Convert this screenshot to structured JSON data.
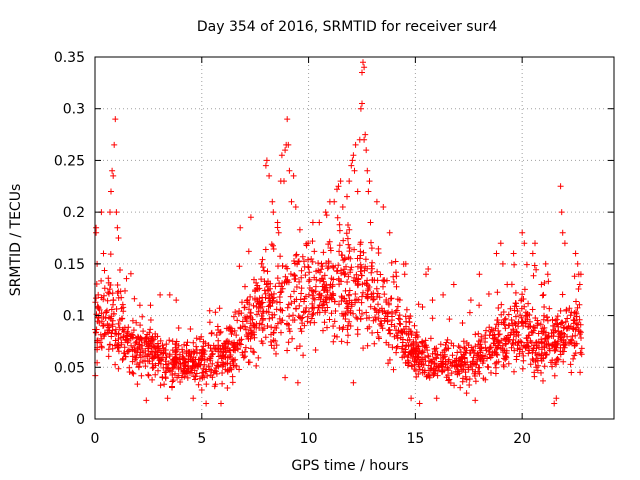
{
  "chart_data": {
    "type": "scatter",
    "title": "Day 354 of 2016, SRMTID for receiver sur4",
    "xlabel": "GPS time / hours",
    "ylabel": "SRMTID / TECUs",
    "xlim": [
      0,
      24.3
    ],
    "ylim": [
      0,
      0.35
    ],
    "x_ticks": [
      0,
      5,
      10,
      15,
      20
    ],
    "x_tick_labels": [
      "0",
      "5",
      "10",
      "15",
      "20"
    ],
    "y_ticks": [
      0,
      0.05,
      0.1,
      0.15,
      0.2,
      0.25,
      0.3,
      0.35
    ],
    "y_tick_labels": [
      "0",
      "0.05",
      "0.1",
      "0.15",
      "0.2",
      "0.25",
      "0.3",
      "0.35"
    ],
    "grid": true,
    "marker": "plus",
    "series": [
      {
        "name": "SRMTID",
        "color": "#ff0000",
        "envelope": {
          "description": "approximate typical level of points over time",
          "x": [
            0,
            0.5,
            1,
            2,
            3,
            4,
            5,
            6,
            7,
            8,
            9,
            10,
            11,
            12,
            13,
            14,
            15,
            16,
            17,
            18,
            19,
            20,
            21,
            22,
            22.8
          ],
          "y": [
            0.09,
            0.1,
            0.085,
            0.07,
            0.06,
            0.055,
            0.055,
            0.06,
            0.085,
            0.11,
            0.115,
            0.12,
            0.13,
            0.13,
            0.115,
            0.1,
            0.06,
            0.055,
            0.05,
            0.06,
            0.075,
            0.085,
            0.075,
            0.075,
            0.09
          ]
        },
        "highlights": {
          "x": [
            0.05,
            0.05,
            0.1,
            0.15,
            0.3,
            0.4,
            0.7,
            0.75,
            0.8,
            0.85,
            0.9,
            0.95,
            1.0,
            1.05,
            1.1,
            2.1,
            2.6,
            3.05,
            3.5,
            3.8,
            6.8,
            7.3,
            8.0,
            8.05,
            8.15,
            8.3,
            8.35,
            8.55,
            8.6,
            8.7,
            8.75,
            8.85,
            8.9,
            8.95,
            9.0,
            9.05,
            9.1,
            9.2,
            9.3,
            9.4,
            10.2,
            10.5,
            10.8,
            11.0,
            11.2,
            11.4,
            11.5,
            11.6,
            11.8,
            11.9,
            12.0,
            12.05,
            12.1,
            12.15,
            12.2,
            12.3,
            12.4,
            12.45,
            12.5,
            12.5,
            12.55,
            12.6,
            12.6,
            12.65,
            12.7,
            12.75,
            12.8,
            12.85,
            12.9,
            13.2,
            13.5,
            13.8,
            14.5,
            14.55,
            15.5,
            15.6,
            15.8,
            16.3,
            16.8,
            17.6,
            18.0,
            18.8,
            19.0,
            19.1,
            19.3,
            19.6,
            20.0,
            20.1,
            20.5,
            20.6,
            20.9,
            21.0,
            21.1,
            21.2,
            21.8,
            21.85,
            21.9,
            22.0,
            22.5,
            22.6,
            22.65,
            22.7,
            22.75
          ],
          "y": [
            0.185,
            0.18,
            0.15,
            0.12,
            0.2,
            0.16,
            0.2,
            0.22,
            0.24,
            0.235,
            0.265,
            0.29,
            0.2,
            0.185,
            0.175,
            0.11,
            0.11,
            0.12,
            0.12,
            0.115,
            0.185,
            0.195,
            0.245,
            0.25,
            0.235,
            0.21,
            0.2,
            0.19,
            0.18,
            0.23,
            0.255,
            0.23,
            0.26,
            0.265,
            0.29,
            0.265,
            0.24,
            0.21,
            0.235,
            0.205,
            0.19,
            0.19,
            0.2,
            0.21,
            0.21,
            0.225,
            0.23,
            0.205,
            0.215,
            0.23,
            0.245,
            0.25,
            0.255,
            0.24,
            0.265,
            0.22,
            0.27,
            0.3,
            0.305,
            0.335,
            0.345,
            0.34,
            0.27,
            0.275,
            0.26,
            0.24,
            0.22,
            0.23,
            0.19,
            0.21,
            0.205,
            0.18,
            0.14,
            0.15,
            0.14,
            0.145,
            0.115,
            0.12,
            0.13,
            0.115,
            0.14,
            0.16,
            0.17,
            0.15,
            0.13,
            0.16,
            0.18,
            0.17,
            0.16,
            0.17,
            0.13,
            0.12,
            0.15,
            0.14,
            0.225,
            0.2,
            0.18,
            0.17,
            0.16,
            0.15,
            0.14,
            0.13,
            0.14
          ]
        },
        "lows": {
          "x": [
            2.4,
            3.4,
            4.6,
            5.0,
            5.2,
            5.9,
            6.2,
            8.9,
            9.5,
            12.1,
            14.8,
            15.2,
            16.0,
            17.4,
            17.8,
            21.5,
            21.6,
            22.3
          ],
          "y": [
            0.018,
            0.02,
            0.02,
            0.028,
            0.015,
            0.015,
            0.03,
            0.04,
            0.035,
            0.035,
            0.02,
            0.015,
            0.02,
            0.025,
            0.018,
            0.015,
            0.02,
            0.045
          ]
        }
      }
    ]
  }
}
